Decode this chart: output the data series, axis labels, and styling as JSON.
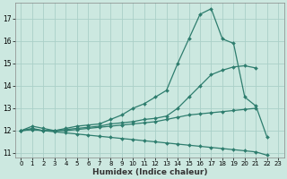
{
  "xlabel": "Humidex (Indice chaleur)",
  "background_color": "#cce8e0",
  "grid_color": "#aacfc8",
  "line_color": "#2e7d6e",
  "xlim": [
    -0.5,
    23.5
  ],
  "ylim": [
    10.8,
    17.7
  ],
  "yticks": [
    11,
    12,
    13,
    14,
    15,
    16,
    17
  ],
  "xticks": [
    0,
    1,
    2,
    3,
    4,
    5,
    6,
    7,
    8,
    9,
    10,
    11,
    12,
    13,
    14,
    15,
    16,
    17,
    18,
    19,
    20,
    21,
    22,
    23
  ],
  "series": [
    {
      "x": [
        0,
        1,
        2,
        3,
        4,
        5,
        6,
        7,
        8,
        9,
        10,
        11,
        12,
        13,
        14,
        15,
        16,
        17,
        18,
        19,
        20,
        21,
        22
      ],
      "y": [
        12.0,
        12.2,
        12.1,
        12.0,
        12.1,
        12.2,
        12.25,
        12.3,
        12.5,
        12.7,
        13.0,
        13.2,
        13.5,
        13.8,
        15.0,
        16.1,
        17.2,
        17.45,
        16.1,
        15.9,
        13.5,
        13.1,
        11.7
      ]
    },
    {
      "x": [
        0,
        1,
        2,
        3,
        4,
        5,
        6,
        7,
        8,
        9,
        10,
        11,
        12,
        13,
        14,
        15,
        16,
        17,
        18,
        19,
        20,
        21
      ],
      "y": [
        12.0,
        12.1,
        12.0,
        12.0,
        12.05,
        12.1,
        12.15,
        12.2,
        12.3,
        12.35,
        12.4,
        12.5,
        12.55,
        12.65,
        13.0,
        13.5,
        14.0,
        14.5,
        14.7,
        14.85,
        14.9,
        14.8
      ]
    },
    {
      "x": [
        0,
        1,
        2,
        3,
        4,
        5,
        6,
        7,
        8,
        9,
        10,
        11,
        12,
        13,
        14,
        15,
        16,
        17,
        18,
        19,
        20,
        21
      ],
      "y": [
        12.0,
        12.05,
        12.0,
        12.0,
        12.0,
        12.05,
        12.1,
        12.15,
        12.2,
        12.25,
        12.3,
        12.35,
        12.4,
        12.5,
        12.6,
        12.7,
        12.75,
        12.8,
        12.85,
        12.9,
        12.95,
        13.0
      ]
    },
    {
      "x": [
        0,
        1,
        2,
        3,
        4,
        5,
        6,
        7,
        8,
        9,
        10,
        11,
        12,
        13,
        14,
        15,
        16,
        17,
        18,
        19,
        20,
        21,
        22
      ],
      "y": [
        12.0,
        12.05,
        12.0,
        11.95,
        11.9,
        11.85,
        11.8,
        11.75,
        11.7,
        11.65,
        11.6,
        11.55,
        11.5,
        11.45,
        11.4,
        11.35,
        11.3,
        11.25,
        11.2,
        11.15,
        11.1,
        11.05,
        10.9
      ]
    }
  ]
}
